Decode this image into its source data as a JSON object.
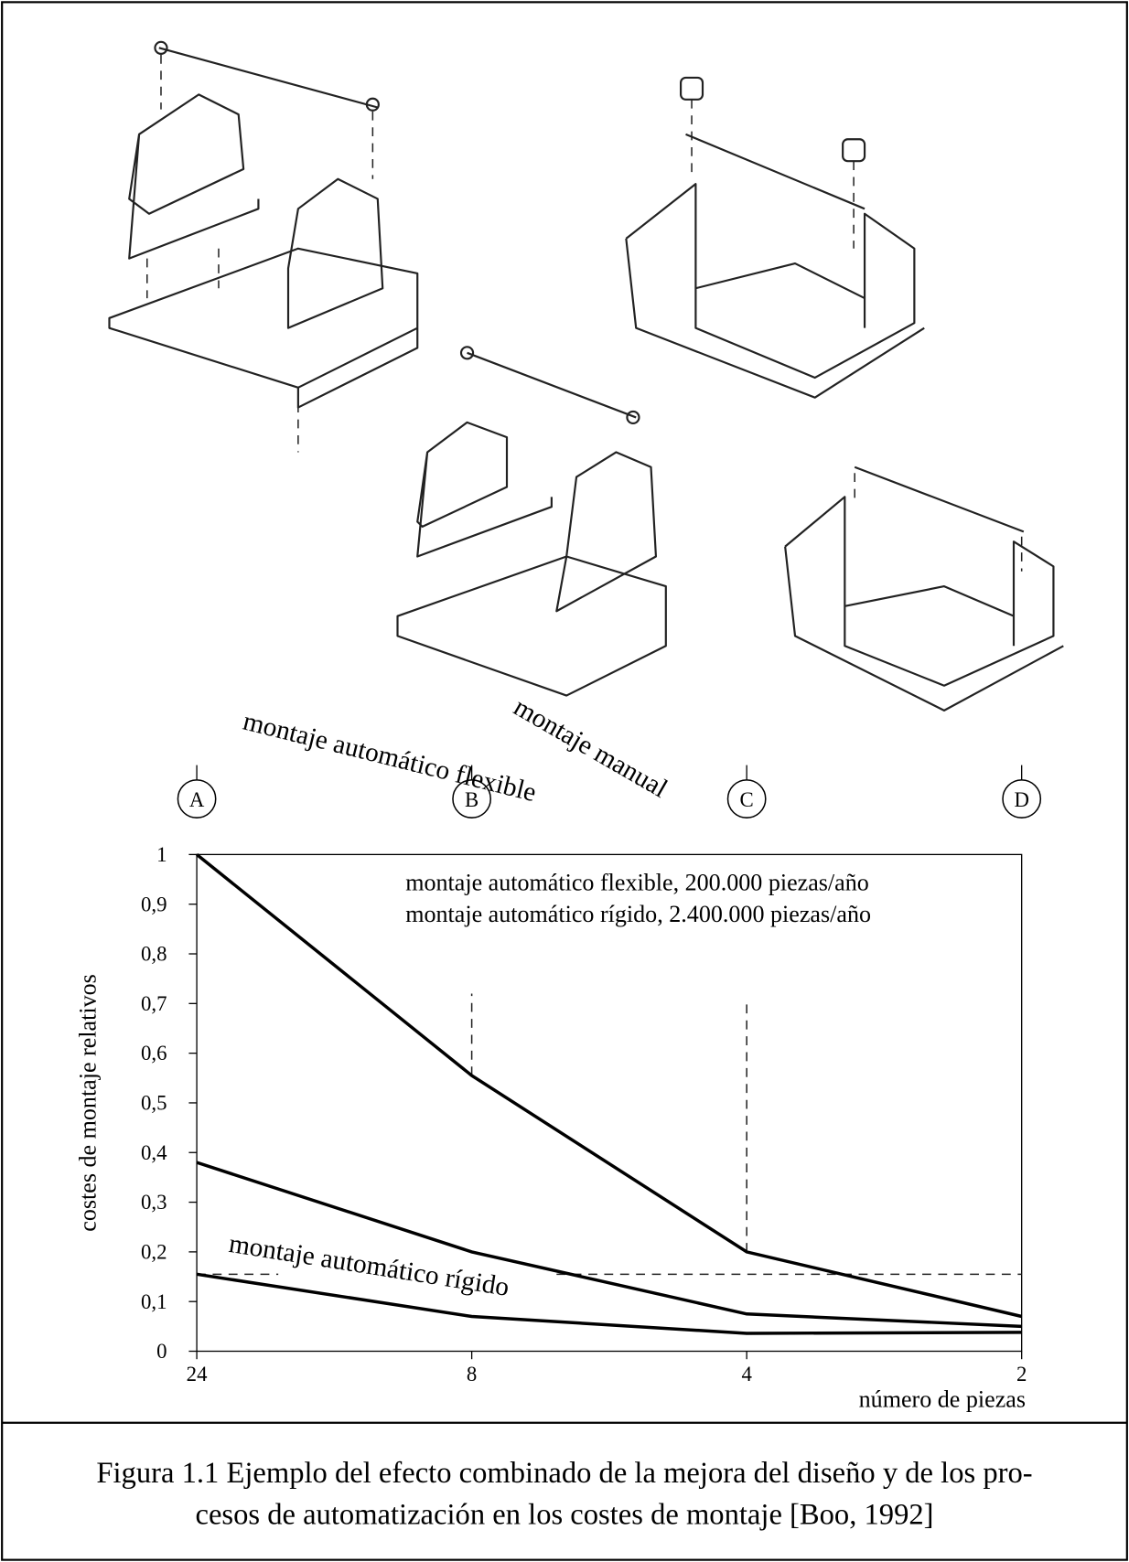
{
  "chart_data": {
    "type": "line",
    "categories": [
      "24",
      "8",
      "4",
      "2"
    ],
    "top_labels": [
      "A",
      "B",
      "C",
      "D"
    ],
    "series": [
      {
        "name": "montaje manual",
        "color": "#000000",
        "values": [
          1,
          0.555,
          0.2,
          0.07
        ]
      },
      {
        "name": "montaje automático flexible",
        "color": "#000000",
        "values": [
          0.38,
          0.2,
          0.075,
          0.05
        ]
      },
      {
        "name": "montaje automático rígido",
        "color": "#000000",
        "values": [
          0.155,
          0.07,
          0.036,
          0.038
        ]
      }
    ],
    "ylim": [
      0,
      1
    ],
    "yticks": [
      0,
      {
        "value": 0.1,
        "label": "0,1"
      },
      {
        "value": 0.2,
        "label": "0,2"
      },
      {
        "value": 0.3,
        "label": "0,3"
      },
      {
        "value": 0.4,
        "label": "0,4"
      },
      {
        "value": 0.5,
        "label": "0,5"
      },
      {
        "value": 0.6,
        "label": "0,6"
      },
      {
        "value": 0.7,
        "label": "0,7"
      },
      {
        "value": 0.8,
        "label": "0,8"
      },
      {
        "value": 0.9,
        "label": "0,9"
      },
      1
    ],
    "ylabel": "costes de montaje relativos",
    "xlabel": "número de piezas",
    "reference_y": 0.155,
    "vguides": [
      {
        "x": "8",
        "ylim": [
          0.555,
          0.72
        ]
      },
      {
        "x": "4",
        "ylim": [
          0.2,
          0.71
        ]
      }
    ],
    "annotations": [
      "montaje automático flexible, 200.000 piezas/año",
      "montaje automático rígido, 2.400.000 piezas/año"
    ],
    "caption": [
      "Figura 1.1 Ejemplo del efecto combinado de la mejora del diseño y de los pro-",
      "cesos de automatización en los costes de montaje [Boo, 1992]"
    ]
  }
}
